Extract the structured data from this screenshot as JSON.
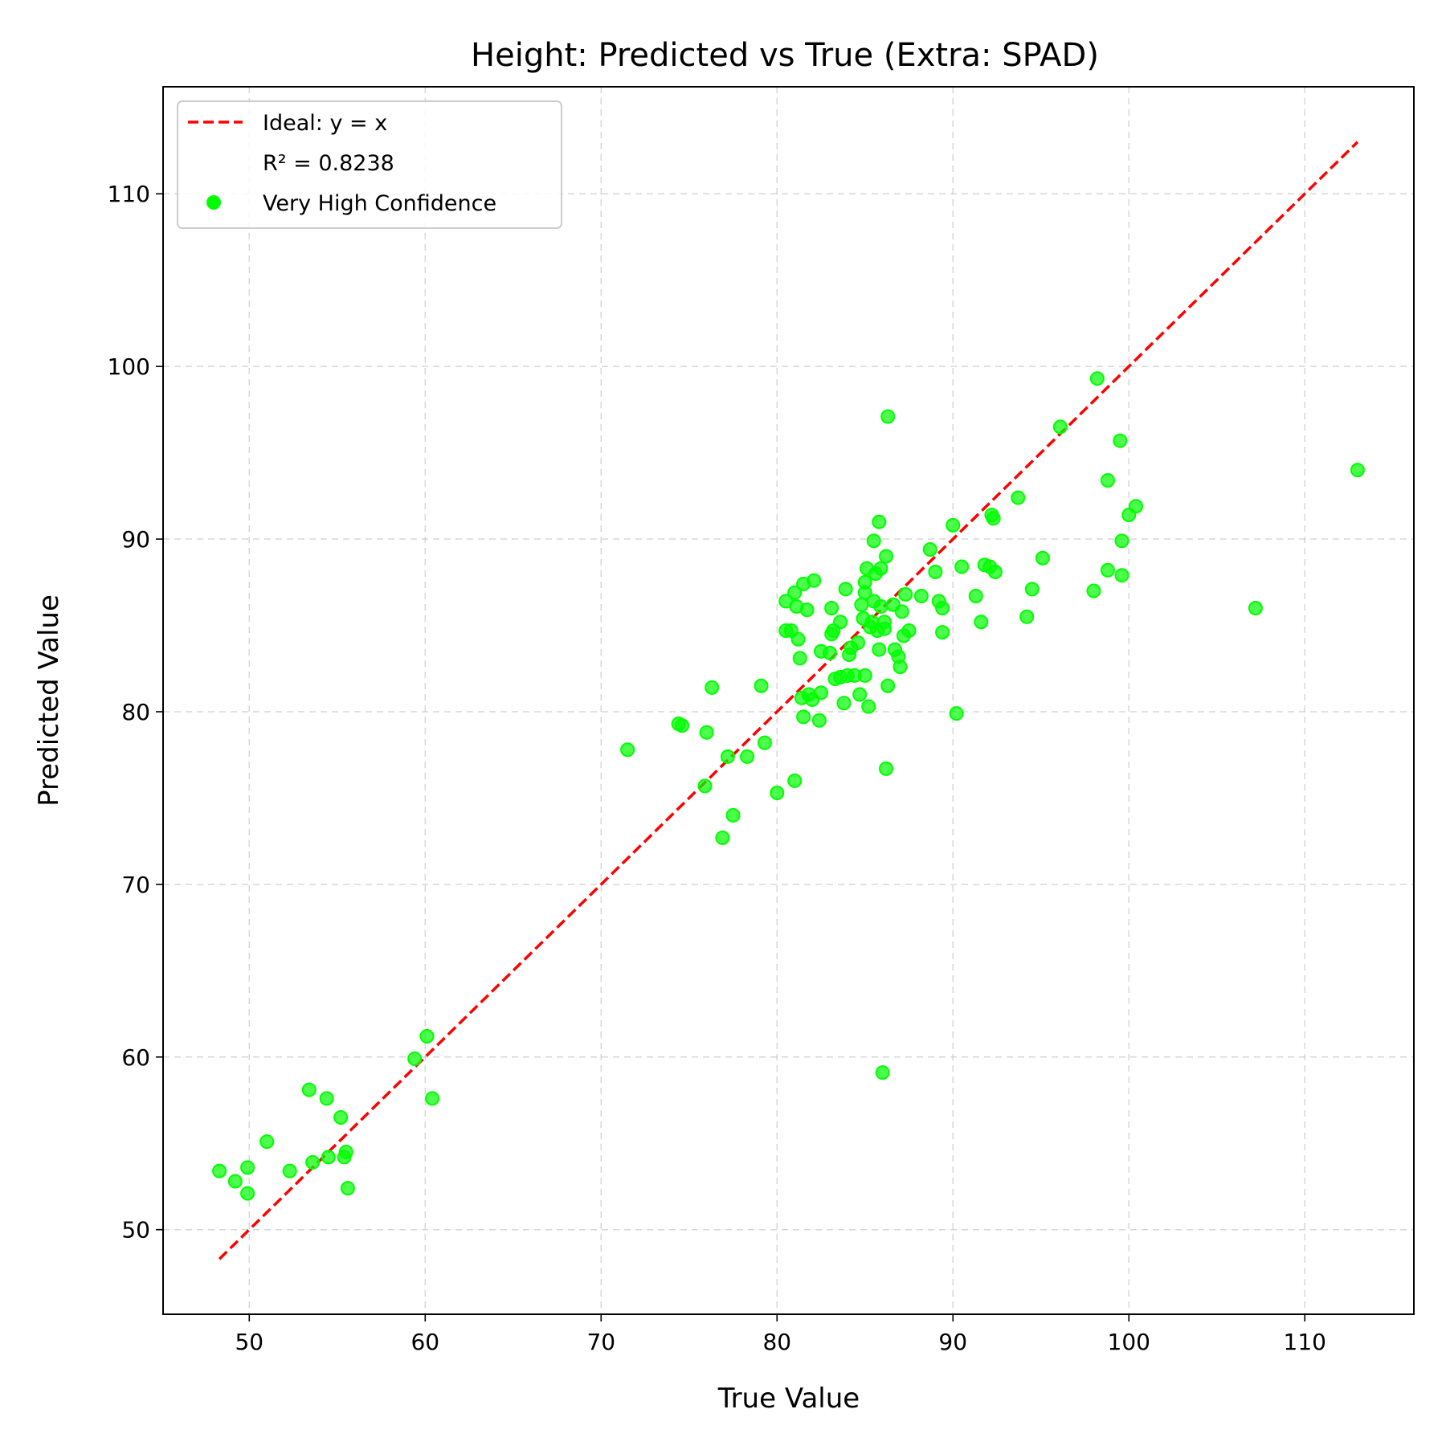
{
  "chart_data": {
    "type": "scatter",
    "title": "Height: Predicted vs True (Extra: SPAD)",
    "xlabel": "True Value",
    "ylabel": "Predicted Value",
    "xlim": [
      45.1,
      116.2
    ],
    "ylim": [
      45.1,
      116.2
    ],
    "xticks": [
      50,
      60,
      70,
      80,
      90,
      100,
      110
    ],
    "yticks": [
      50,
      60,
      70,
      80,
      90,
      100,
      110
    ],
    "grid": true,
    "legend_position": "top-left",
    "legend": [
      {
        "kind": "line",
        "label": "Ideal: y = x",
        "color": "#ff0000"
      },
      {
        "kind": "text",
        "label": "R² = 0.8238"
      },
      {
        "kind": "marker",
        "label": "Very High Confidence",
        "color": "#00ff00"
      }
    ],
    "ideal_line": {
      "x": [
        48.3,
        113.0
      ],
      "y": [
        48.3,
        113.0
      ],
      "color": "#ff0000"
    },
    "series": [
      {
        "name": "Very High Confidence",
        "color": "#00ff00",
        "points": [
          [
            48.3,
            53.4
          ],
          [
            49.2,
            52.8
          ],
          [
            49.9,
            53.6
          ],
          [
            49.9,
            52.1
          ],
          [
            51.0,
            55.1
          ],
          [
            52.3,
            53.4
          ],
          [
            53.4,
            58.1
          ],
          [
            53.6,
            53.9
          ],
          [
            54.4,
            57.6
          ],
          [
            54.5,
            54.2
          ],
          [
            55.2,
            56.5
          ],
          [
            55.4,
            54.2
          ],
          [
            55.5,
            54.5
          ],
          [
            55.6,
            52.4
          ],
          [
            59.4,
            59.9
          ],
          [
            60.1,
            61.2
          ],
          [
            60.4,
            57.6
          ],
          [
            71.5,
            77.8
          ],
          [
            74.4,
            79.3
          ],
          [
            74.6,
            79.2
          ],
          [
            75.9,
            75.7
          ],
          [
            76.0,
            78.8
          ],
          [
            76.3,
            81.4
          ],
          [
            76.9,
            72.7
          ],
          [
            77.2,
            77.4
          ],
          [
            77.5,
            74.0
          ],
          [
            78.3,
            77.4
          ],
          [
            79.1,
            81.5
          ],
          [
            79.3,
            78.2
          ],
          [
            80.0,
            75.3
          ],
          [
            80.5,
            86.4
          ],
          [
            80.5,
            84.7
          ],
          [
            80.8,
            84.7
          ],
          [
            81.0,
            76.0
          ],
          [
            81.0,
            86.9
          ],
          [
            81.1,
            86.1
          ],
          [
            81.2,
            84.2
          ],
          [
            81.3,
            83.1
          ],
          [
            81.4,
            80.8
          ],
          [
            81.5,
            87.4
          ],
          [
            81.5,
            79.7
          ],
          [
            81.7,
            85.9
          ],
          [
            81.8,
            81.0
          ],
          [
            82.0,
            80.7
          ],
          [
            82.1,
            87.6
          ],
          [
            82.4,
            79.5
          ],
          [
            82.5,
            81.1
          ],
          [
            82.5,
            83.5
          ],
          [
            83.0,
            83.4
          ],
          [
            83.1,
            86.0
          ],
          [
            83.1,
            84.5
          ],
          [
            83.2,
            84.7
          ],
          [
            83.3,
            81.9
          ],
          [
            83.6,
            85.2
          ],
          [
            83.6,
            82.0
          ],
          [
            83.8,
            80.5
          ],
          [
            83.9,
            87.1
          ],
          [
            84.0,
            82.1
          ],
          [
            84.1,
            83.3
          ],
          [
            84.2,
            83.7
          ],
          [
            84.4,
            82.1
          ],
          [
            84.6,
            84.0
          ],
          [
            84.7,
            81.0
          ],
          [
            84.8,
            86.2
          ],
          [
            84.9,
            85.4
          ],
          [
            85.0,
            82.1
          ],
          [
            85.0,
            87.5
          ],
          [
            85.0,
            86.9
          ],
          [
            85.1,
            88.3
          ],
          [
            85.2,
            80.3
          ],
          [
            85.3,
            84.9
          ],
          [
            85.4,
            85.2
          ],
          [
            85.5,
            89.9
          ],
          [
            85.5,
            86.4
          ],
          [
            85.6,
            88.0
          ],
          [
            85.7,
            84.7
          ],
          [
            85.8,
            91.0
          ],
          [
            85.8,
            83.6
          ],
          [
            85.9,
            88.3
          ],
          [
            85.9,
            86.1
          ],
          [
            86.0,
            59.1
          ],
          [
            86.1,
            85.2
          ],
          [
            86.1,
            84.8
          ],
          [
            86.2,
            89.0
          ],
          [
            86.2,
            76.7
          ],
          [
            86.3,
            97.1
          ],
          [
            86.3,
            81.5
          ],
          [
            86.6,
            86.2
          ],
          [
            86.7,
            83.6
          ],
          [
            86.9,
            83.2
          ],
          [
            87.0,
            82.6
          ],
          [
            87.1,
            85.8
          ],
          [
            87.2,
            84.4
          ],
          [
            87.3,
            86.8
          ],
          [
            87.5,
            84.7
          ],
          [
            88.2,
            86.7
          ],
          [
            88.7,
            89.4
          ],
          [
            89.0,
            88.1
          ],
          [
            89.2,
            86.4
          ],
          [
            89.4,
            86.0
          ],
          [
            89.4,
            84.6
          ],
          [
            90.0,
            90.8
          ],
          [
            90.2,
            79.9
          ],
          [
            90.5,
            88.4
          ],
          [
            91.3,
            86.7
          ],
          [
            91.6,
            85.2
          ],
          [
            91.8,
            88.5
          ],
          [
            92.1,
            88.4
          ],
          [
            92.2,
            91.4
          ],
          [
            92.3,
            91.2
          ],
          [
            92.4,
            88.1
          ],
          [
            93.7,
            92.4
          ],
          [
            94.2,
            85.5
          ],
          [
            94.5,
            87.1
          ],
          [
            95.1,
            88.9
          ],
          [
            96.1,
            96.5
          ],
          [
            98.0,
            87.0
          ],
          [
            98.2,
            99.3
          ],
          [
            98.8,
            88.2
          ],
          [
            98.8,
            93.4
          ],
          [
            99.5,
            95.7
          ],
          [
            99.6,
            89.9
          ],
          [
            99.6,
            87.9
          ],
          [
            100.0,
            91.4
          ],
          [
            100.4,
            91.9
          ],
          [
            107.2,
            86.0
          ],
          [
            113.0,
            94.0
          ]
        ]
      }
    ]
  }
}
